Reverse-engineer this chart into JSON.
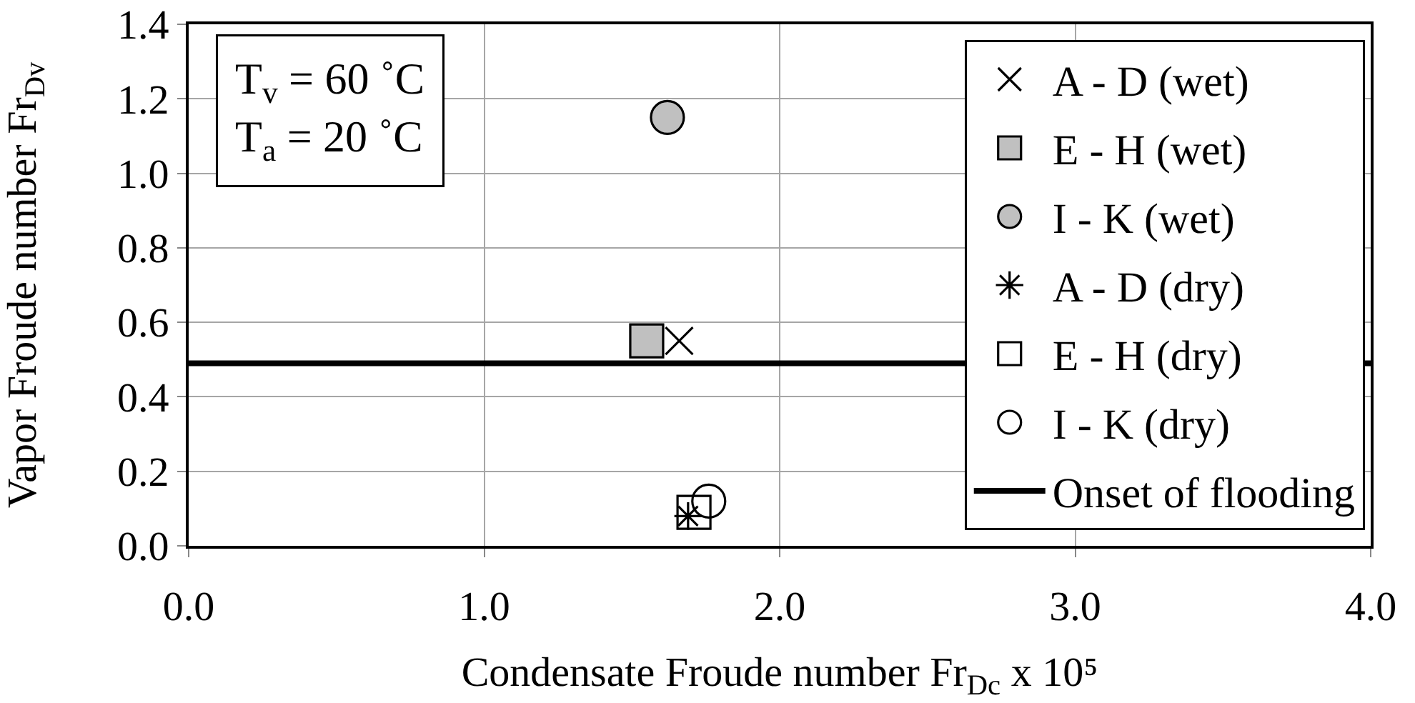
{
  "chart_data": {
    "type": "scatter",
    "xlabel": "Condensate Froude number Fr$_{Dc}$ x 10⁵",
    "ylabel": "Vapor Froude number Fr$_{Dv}$",
    "annotations": [
      "T$_{v}$ = 60 ˚C\nT$_{a}$ = 20 ˚C"
    ],
    "xlim": [
      0,
      4
    ],
    "ylim": [
      0,
      1.4
    ],
    "xticks": [
      {
        "value": 0,
        "label": "0.0"
      },
      {
        "value": 1,
        "label": "1.0"
      },
      {
        "value": 2,
        "label": "2.0"
      },
      {
        "value": 3,
        "label": "3.0"
      },
      {
        "value": 4,
        "label": "4.0"
      }
    ],
    "yticks": [
      {
        "value": 0,
        "label": "0.0"
      },
      {
        "value": 0.2,
        "label": "0.2"
      },
      {
        "value": 0.4,
        "label": "0.4"
      },
      {
        "value": 0.6,
        "label": "0.6"
      },
      {
        "value": 0.8,
        "label": "0.8"
      },
      {
        "value": 1.0,
        "label": "1.0"
      },
      {
        "value": 1.2,
        "label": "1.2"
      },
      {
        "value": 1.4,
        "label": "1.4"
      }
    ],
    "grid": true,
    "legend": "right",
    "series": [
      {
        "name": "A - D (wet)",
        "marker": "cross",
        "color": "#000000",
        "x": [
          1.66
        ],
        "values": [
          0.55
        ]
      },
      {
        "name": "E - H (wet)",
        "marker": "square",
        "color": "#c0c0c0",
        "x": [
          1.55
        ],
        "values": [
          0.55
        ]
      },
      {
        "name": "I - K (wet)",
        "marker": "circle",
        "color": "#c0c0c0",
        "x": [
          1.62
        ],
        "values": [
          1.15
        ]
      },
      {
        "name": "A - D (dry)",
        "marker": "cross",
        "color": "#000000",
        "x": [
          1.69
        ],
        "values": [
          0.08
        ]
      },
      {
        "name": "E - H (dry)",
        "marker": "square",
        "x": [
          1.71
        ],
        "values": [
          0.09
        ]
      },
      {
        "name": "I - K (dry)",
        "marker": "circle",
        "x": [
          1.76
        ],
        "values": [
          0.12
        ]
      },
      {
        "name": "Onset of flooding",
        "type": "line",
        "color": "#000000",
        "x": [
          0,
          4
        ],
        "values": [
          0.49,
          0.49
        ]
      }
    ]
  }
}
